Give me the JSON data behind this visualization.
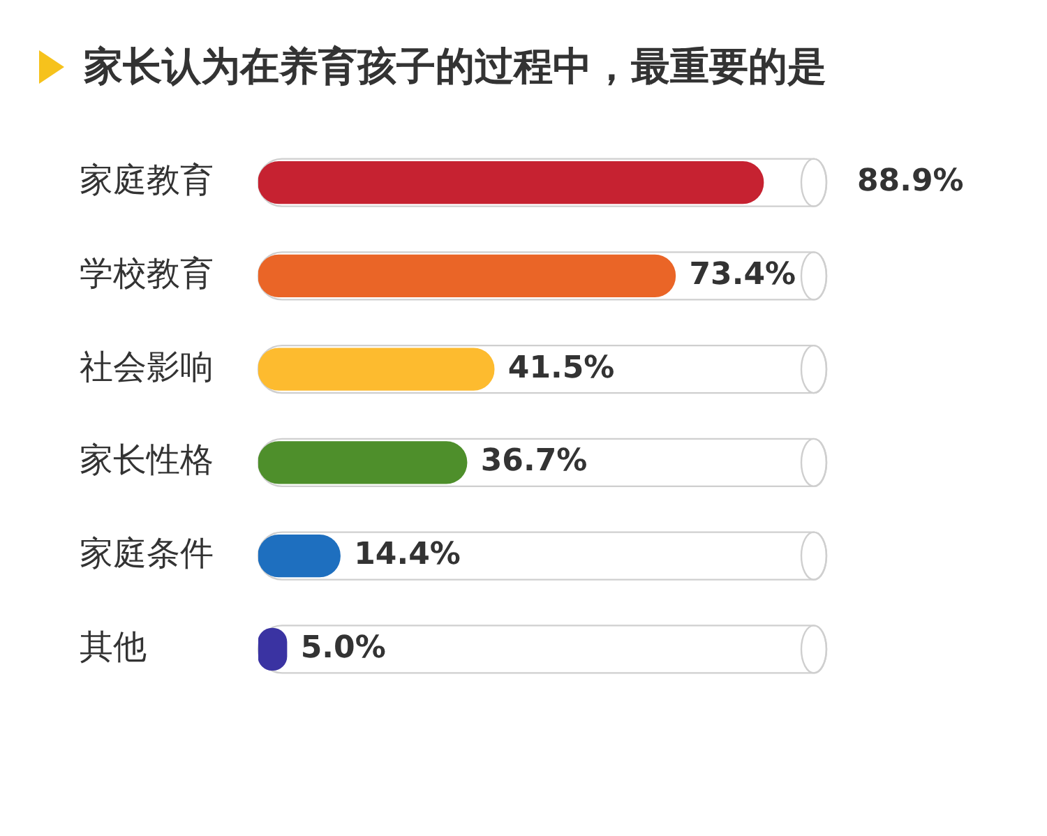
{
  "chart_data": {
    "type": "bar",
    "orientation": "horizontal",
    "title": "家长认为在养育孩子的过程中，最重要的是",
    "categories": [
      "家庭教育",
      "学校教育",
      "社会影响",
      "家长性格",
      "家庭条件",
      "其他"
    ],
    "values": [
      88.9,
      73.4,
      41.5,
      36.7,
      14.4,
      5.0
    ],
    "colors": [
      "#c62231",
      "#ea6527",
      "#fdbb2f",
      "#4e8f2b",
      "#1e6fbf",
      "#3a33a2"
    ],
    "value_labels": [
      "88.9%",
      "73.4%",
      "41.5%",
      "36.7%",
      "14.4%",
      "5.0%"
    ],
    "xlim": [
      0,
      100
    ],
    "tick_labels": "y"
  }
}
